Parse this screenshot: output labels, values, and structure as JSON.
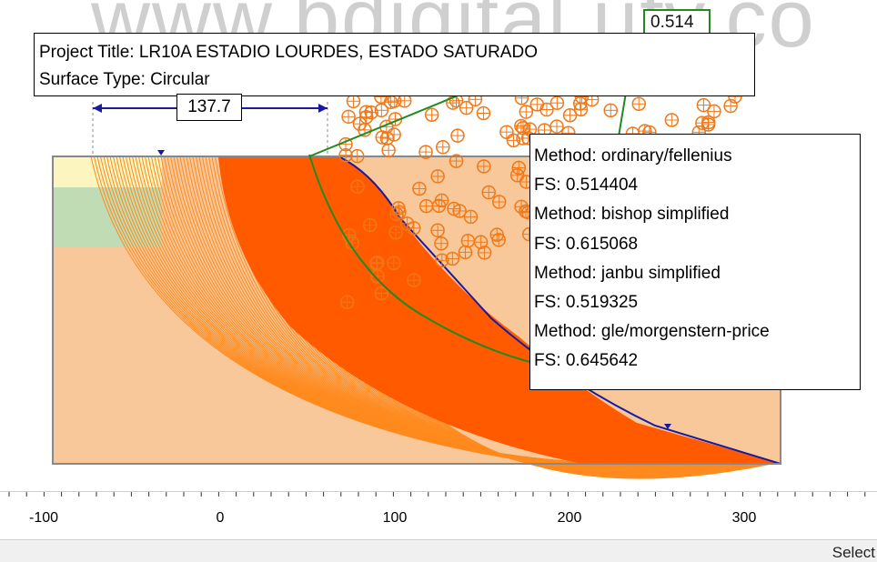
{
  "watermark": "www.bdigital.ufv.co",
  "project": {
    "title_line": "Project Title: LR10A  ESTADIO LOURDES,  ESTADO SATURADO",
    "surface_line": "Surface Type: Circular"
  },
  "dimension": {
    "label": "137.7"
  },
  "fs_tag": "0.514",
  "results": [
    {
      "method": "Method: ordinary/fellenius",
      "fs": "FS: 0.514404"
    },
    {
      "method": "Method: bishop simplified",
      "fs": "FS: 0.615068"
    },
    {
      "method": "Method: janbu simplified",
      "fs": "FS: 0.519325"
    },
    {
      "method": "Method: gle/morgenstern-price",
      "fs": "FS: 0.645642"
    }
  ],
  "ruler": {
    "ticks": [
      {
        "label": "-100"
      },
      {
        "label": "0"
      },
      {
        "label": "100"
      },
      {
        "label": "200"
      },
      {
        "label": "300"
      }
    ]
  },
  "status": {
    "text": "Select"
  },
  "colors": {
    "slope_orange": "#ff5a00",
    "slip_surfaces": "#ff8a1e",
    "center_markers": "#f07818",
    "soil_base": "#f9c89a",
    "soil_green": "#bfdcb4",
    "soil_yellow": "#fdf5c0",
    "critical_circle": "#1f8a1f",
    "boundary_blue": "#1a1aa0"
  }
}
